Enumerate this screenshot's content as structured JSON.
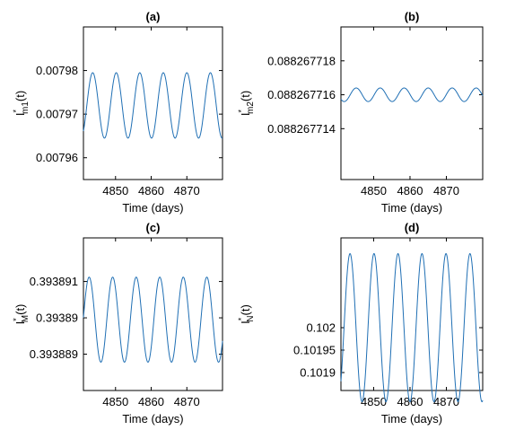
{
  "colors": {
    "line": "#1f6fb4",
    "axis": "#000000",
    "background": "#ffffff"
  },
  "chart_data": [
    {
      "type": "line",
      "title": "(a)",
      "xlabel": "Time (days)",
      "ylabel": {
        "base": "I",
        "sup": "*",
        "sub": "m1",
        "suffix": "(t)"
      },
      "xlim": [
        4841,
        4880
      ],
      "ylim": [
        0.007955,
        0.00799
      ],
      "xticks": [
        4850,
        4860,
        4870
      ],
      "xticklabels": [
        "4850",
        "4860",
        "4870"
      ],
      "yticks": [
        0.00796,
        0.00797,
        0.00798
      ],
      "yticklabels": [
        "0.00796",
        "0.00797",
        "0.00798"
      ],
      "grid": false,
      "series": [
        {
          "function": "sinusoid",
          "center": 0.007972,
          "amplitude": 7.5e-06,
          "period": 6.6,
          "peak_at": 4843.6,
          "x_range": [
            4841,
            4880
          ]
        }
      ]
    },
    {
      "type": "line",
      "title": "(b)",
      "xlabel": "Time (days)",
      "ylabel": {
        "base": "I",
        "sup": "*",
        "sub": "m2",
        "suffix": "(t)"
      },
      "xlim": [
        4841,
        4880
      ],
      "ylim": [
        0.088267711,
        0.08826772
      ],
      "xticks": [
        4850,
        4860,
        4870
      ],
      "xticklabels": [
        "4850",
        "4860",
        "4870"
      ],
      "yticks": [
        0.088267714,
        0.088267716,
        0.088267718
      ],
      "yticklabels": [
        "0.088267714",
        "0.088267716",
        "0.088267718"
      ],
      "grid": false,
      "series": [
        {
          "function": "sinusoid",
          "center": 0.088267716,
          "amplitude": 4e-10,
          "period": 6.6,
          "peak_at": 4845.2,
          "x_range": [
            4841,
            4880
          ]
        }
      ]
    },
    {
      "type": "line",
      "title": "(c)",
      "xlabel": "Time (days)",
      "ylabel": {
        "base": "I",
        "sup": "*",
        "sub": "M",
        "suffix": "(t)"
      },
      "xlim": [
        4841,
        4880
      ],
      "ylim": [
        0.393888,
        0.3938922
      ],
      "xticks": [
        4850,
        4860,
        4870
      ],
      "xticklabels": [
        "4850",
        "4860",
        "4870"
      ],
      "yticks": [
        0.393889,
        0.39389,
        0.393891
      ],
      "yticklabels": [
        "0.393889",
        "0.39389",
        "0.393891"
      ],
      "grid": false,
      "series": [
        {
          "function": "sinusoid",
          "center": 0.39388995,
          "amplitude": 1.17e-06,
          "period": 6.6,
          "peak_at": 4842.6,
          "x_range": [
            4841,
            4880
          ]
        }
      ]
    },
    {
      "type": "line",
      "title": "(d)",
      "xlabel": "Time (days)",
      "ylabel": {
        "base": "I",
        "sup": "*",
        "sub": "N",
        "suffix": "(t)"
      },
      "xlim": [
        4841,
        4880
      ],
      "ylim": [
        0.10186,
        0.1022
      ],
      "xticks": [
        4850,
        4860,
        4870
      ],
      "xticklabels": [
        "4850",
        "4860",
        "4870"
      ],
      "yticks": [
        0.1019,
        0.10195,
        0.102
      ],
      "yticklabels": [
        "0.1019",
        "0.10195",
        "0.102"
      ],
      "grid": false,
      "series": [
        {
          "function": "sinusoid",
          "center": 0.102,
          "amplitude": 0.000165,
          "period": 6.6,
          "peak_at": 4843.5,
          "x_range": [
            4841,
            4880
          ]
        }
      ]
    }
  ]
}
